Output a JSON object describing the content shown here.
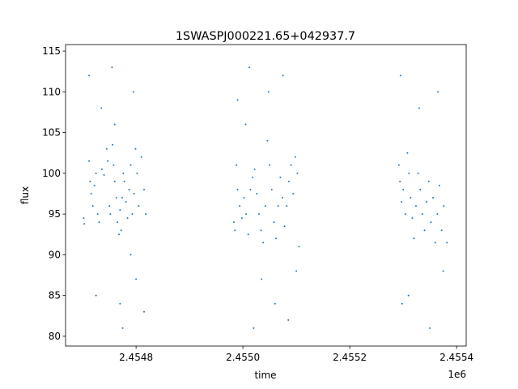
{
  "chart_data": {
    "type": "scatter",
    "title": "1SWASPJ000221.65+042937.7",
    "x_label": "time",
    "y_label": "flux",
    "x_offset_label": "1e6",
    "color": "#1f77b4",
    "xlim": [
      2454668,
      2455418
    ],
    "ylim": [
      78.8,
      115.8
    ],
    "xticks": [
      {
        "value": 2454800,
        "label": "2.4548"
      },
      {
        "value": 2455000,
        "label": "2.4550"
      },
      {
        "value": 2455200,
        "label": "2.4552"
      },
      {
        "value": 2455400,
        "label": "2.4554"
      }
    ],
    "yticks": [
      80,
      85,
      90,
      95,
      100,
      105,
      110,
      115
    ],
    "x": [
      2454702,
      2454703,
      2454712,
      2454714,
      2454716,
      2454719,
      2454722,
      2454725,
      2454728,
      2454731,
      2454736,
      2454740,
      2454745,
      2454747,
      2454750,
      2454752,
      2454756,
      2454758,
      2454760,
      2454763,
      2454765,
      2454768,
      2454770,
      2454772,
      2454774,
      2454776,
      2454778,
      2454781,
      2454784,
      2454787,
      2454790,
      2454793,
      2454796,
      2454799,
      2454802,
      2454805,
      2454810,
      2454815,
      2454818,
      2454712,
      2454735,
      2454755,
      2454770,
      2454775,
      2454795,
      2454800,
      2454815,
      2454725,
      2454790,
      2454760,
      2454983,
      2454985,
      2454988,
      2454990,
      2454994,
      2454998,
      2455002,
      2455006,
      2455010,
      2455014,
      2455018,
      2455022,
      2455026,
      2455030,
      2455034,
      2455038,
      2455042,
      2455046,
      2455050,
      2455054,
      2455058,
      2455062,
      2455066,
      2455070,
      2455074,
      2455078,
      2455082,
      2455086,
      2455090,
      2455094,
      2455098,
      2455102,
      2455105,
      2454990,
      2455012,
      2455020,
      2455035,
      2455048,
      2455060,
      2455075,
      2455085,
      2455100,
      2455005,
      2455292,
      2455294,
      2455297,
      2455300,
      2455304,
      2455308,
      2455311,
      2455314,
      2455317,
      2455320,
      2455324,
      2455328,
      2455332,
      2455336,
      2455340,
      2455344,
      2455348,
      2455352,
      2455356,
      2455360,
      2455364,
      2455368,
      2455372,
      2455376,
      2455382,
      2455295,
      2455310,
      2455330,
      2455350,
      2455365,
      2455375,
      2455298
    ],
    "y": [
      94.5,
      93.8,
      101.5,
      99,
      97.5,
      96,
      98.5,
      100,
      95,
      94,
      100.5,
      99.8,
      103,
      101.5,
      96,
      95,
      103.5,
      101,
      99,
      97,
      94,
      92.5,
      95.5,
      93,
      97,
      100,
      99,
      96.5,
      94.5,
      98,
      101,
      95,
      97.5,
      103,
      100,
      96,
      102,
      98,
      95,
      112,
      108,
      113,
      84,
      81,
      110,
      87,
      83,
      85,
      90,
      106,
      94,
      93,
      101,
      98,
      96,
      94.5,
      97,
      95,
      92.5,
      98,
      99.5,
      100.5,
      97.5,
      95,
      93,
      91.5,
      96,
      104,
      101,
      98,
      94,
      92,
      96,
      99.5,
      97,
      93.5,
      96,
      99,
      101,
      97.5,
      102,
      100,
      91,
      109,
      113,
      81,
      87,
      110,
      84,
      112,
      82,
      88,
      106,
      101,
      99,
      96.5,
      98,
      95,
      102.5,
      100,
      97,
      94.5,
      92,
      96,
      100,
      98,
      95,
      93,
      96.5,
      99,
      94,
      97,
      91.5,
      95,
      98.5,
      93,
      96,
      91.5,
      112,
      85,
      108,
      81,
      110,
      88,
      84
    ]
  }
}
